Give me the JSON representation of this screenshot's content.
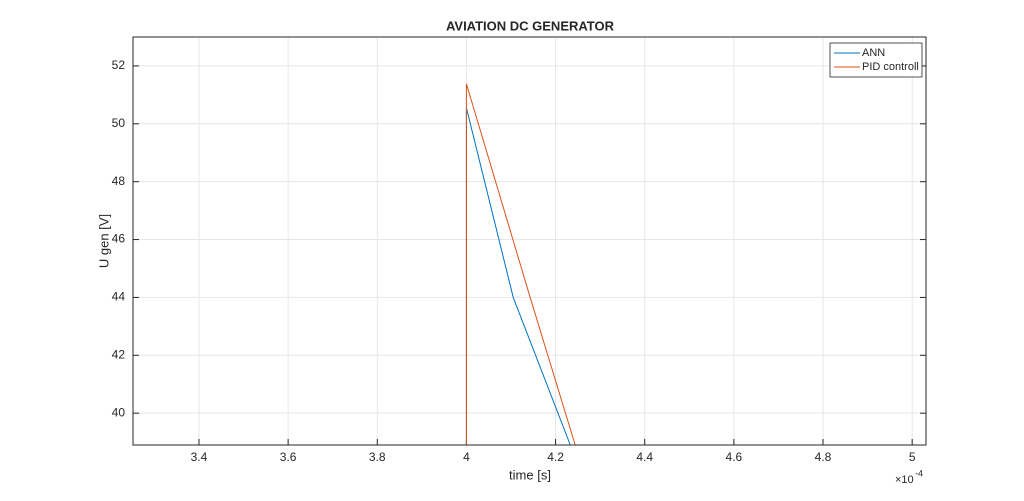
{
  "chart_data": {
    "type": "line",
    "title": "AVIATION DC GENERATOR",
    "x_label": "time [s]",
    "y_label": "U gen [V]",
    "x_exponent": {
      "base": "×10",
      "power": "-4"
    },
    "xlim": [
      3.252,
      5.031
    ],
    "ylim": [
      38.9,
      53.0
    ],
    "xticks": [
      3.4,
      3.6,
      3.8,
      4,
      4.2,
      4.4,
      4.6,
      4.8,
      5
    ],
    "yticks": [
      40,
      42,
      44,
      46,
      48,
      50,
      52
    ],
    "grid": true,
    "legend": "top-right",
    "series": [
      {
        "name": "ANN",
        "color": "#0072bd",
        "x": [
          4,
          4,
          4.105,
          4.233
        ],
        "values": [
          38.9,
          50.55,
          44,
          38.9
        ]
      },
      {
        "name": "PID controll",
        "color": "#d95319",
        "x": [
          4,
          4,
          4.143,
          4.244
        ],
        "values": [
          38.9,
          51.38,
          44,
          38.9
        ]
      }
    ]
  }
}
